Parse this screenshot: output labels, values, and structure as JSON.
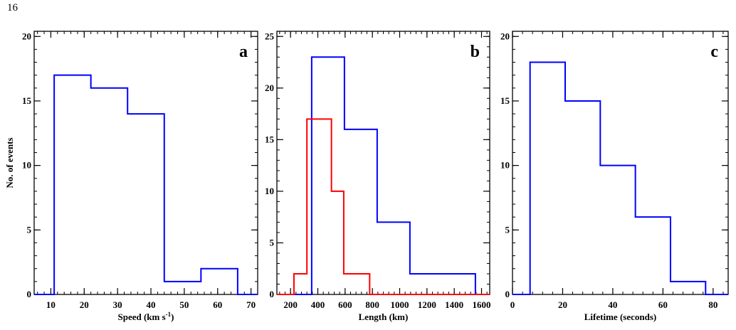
{
  "page_number": "16",
  "chart_data": [
    {
      "type": "histogram",
      "panel_label": "a",
      "xlabel": "Speed (km s",
      "xlabel_sup": "-1",
      "xlabel_tail": ")",
      "ylabel": "No. of events",
      "xlim": [
        5,
        72
      ],
      "ylim": [
        0,
        20.4
      ],
      "xticks": [
        10,
        20,
        30,
        40,
        50,
        60,
        70
      ],
      "yticks": [
        0,
        5,
        10,
        15,
        20
      ],
      "series": [
        {
          "color": "#0000ff",
          "bins": [
            [
              11,
              22,
              17
            ],
            [
              22,
              33,
              16
            ],
            [
              33,
              44,
              14
            ],
            [
              44,
              55,
              1
            ],
            [
              55,
              66,
              2
            ]
          ]
        }
      ]
    },
    {
      "type": "histogram",
      "panel_label": "b",
      "xlabel": "Length (km)",
      "ylabel": "",
      "xlim": [
        100,
        1660
      ],
      "ylim": [
        0,
        25.5
      ],
      "xticks": [
        200,
        400,
        600,
        800,
        1000,
        1200,
        1400,
        1600
      ],
      "yticks": [
        0,
        5,
        10,
        15,
        20,
        25
      ],
      "series": [
        {
          "color": "#0000ff",
          "bins": [
            [
              355,
              595,
              23
            ],
            [
              595,
              835,
              16
            ],
            [
              835,
              1075,
              7
            ],
            [
              1075,
              1555,
              2
            ]
          ]
        },
        {
          "color": "#ff0000",
          "bins": [
            [
              225,
              320,
              2
            ],
            [
              320,
              500,
              17
            ],
            [
              500,
              590,
              10
            ],
            [
              590,
              780,
              2
            ]
          ]
        }
      ]
    },
    {
      "type": "histogram",
      "panel_label": "c",
      "xlabel": "Lifetime (seconds)",
      "ylabel": "",
      "xlim": [
        0,
        86
      ],
      "ylim": [
        0,
        20.4
      ],
      "xticks": [
        0,
        20,
        40,
        60,
        80
      ],
      "yticks": [
        0,
        5,
        10,
        15,
        20
      ],
      "series": [
        {
          "color": "#0000ff",
          "bins": [
            [
              7,
              21,
              18
            ],
            [
              21,
              35,
              15
            ],
            [
              35,
              49,
              10
            ],
            [
              49,
              63,
              6
            ],
            [
              63,
              77,
              1
            ]
          ]
        }
      ]
    }
  ]
}
